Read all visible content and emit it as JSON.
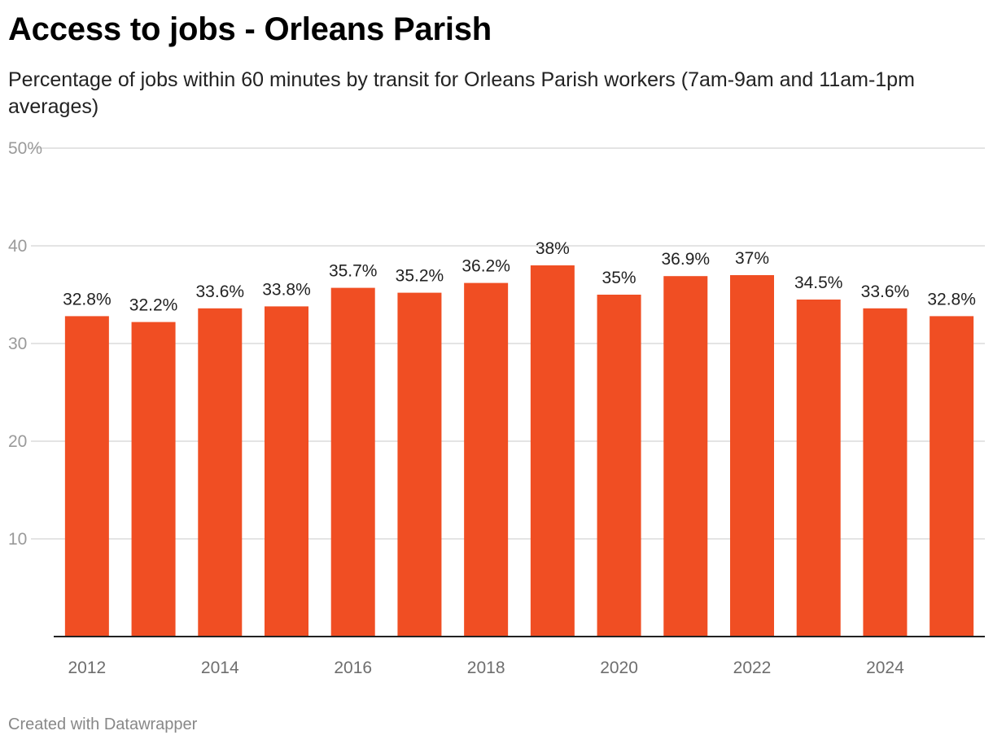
{
  "header": {
    "title": "Access to jobs - Orleans Parish",
    "subtitle": "Percentage of jobs within 60 minutes by transit for Orleans Parish workers (7am-9am and 11am-1pm averages)"
  },
  "footer": {
    "credit": "Created with Datawrapper"
  },
  "chart_data": {
    "type": "bar",
    "categories": [
      "2012",
      "2013",
      "2014",
      "2015",
      "2016",
      "2017",
      "2018",
      "2019",
      "2020",
      "2021",
      "2022",
      "2023",
      "2024",
      "2025"
    ],
    "x_tick_labels": [
      "2012",
      "",
      "2014",
      "",
      "2016",
      "",
      "2018",
      "",
      "2020",
      "",
      "2022",
      "",
      "2024",
      ""
    ],
    "values": [
      32.8,
      32.2,
      33.6,
      33.8,
      35.7,
      35.2,
      36.2,
      38,
      35,
      36.9,
      37,
      34.5,
      33.6,
      32.8
    ],
    "data_labels": [
      "32.8%",
      "32.2%",
      "33.6%",
      "33.8%",
      "35.7%",
      "35.2%",
      "36.2%",
      "38%",
      "35%",
      "36.9%",
      "37%",
      "34.5%",
      "33.6%",
      "32.8%"
    ],
    "y_ticks": [
      {
        "value": 10,
        "label": "10"
      },
      {
        "value": 20,
        "label": "20"
      },
      {
        "value": 30,
        "label": "30"
      },
      {
        "value": 40,
        "label": "40"
      },
      {
        "value": 50,
        "label": "50%"
      }
    ],
    "ylim": [
      0,
      50
    ],
    "grid": true,
    "bar_color": "#f04e23"
  }
}
